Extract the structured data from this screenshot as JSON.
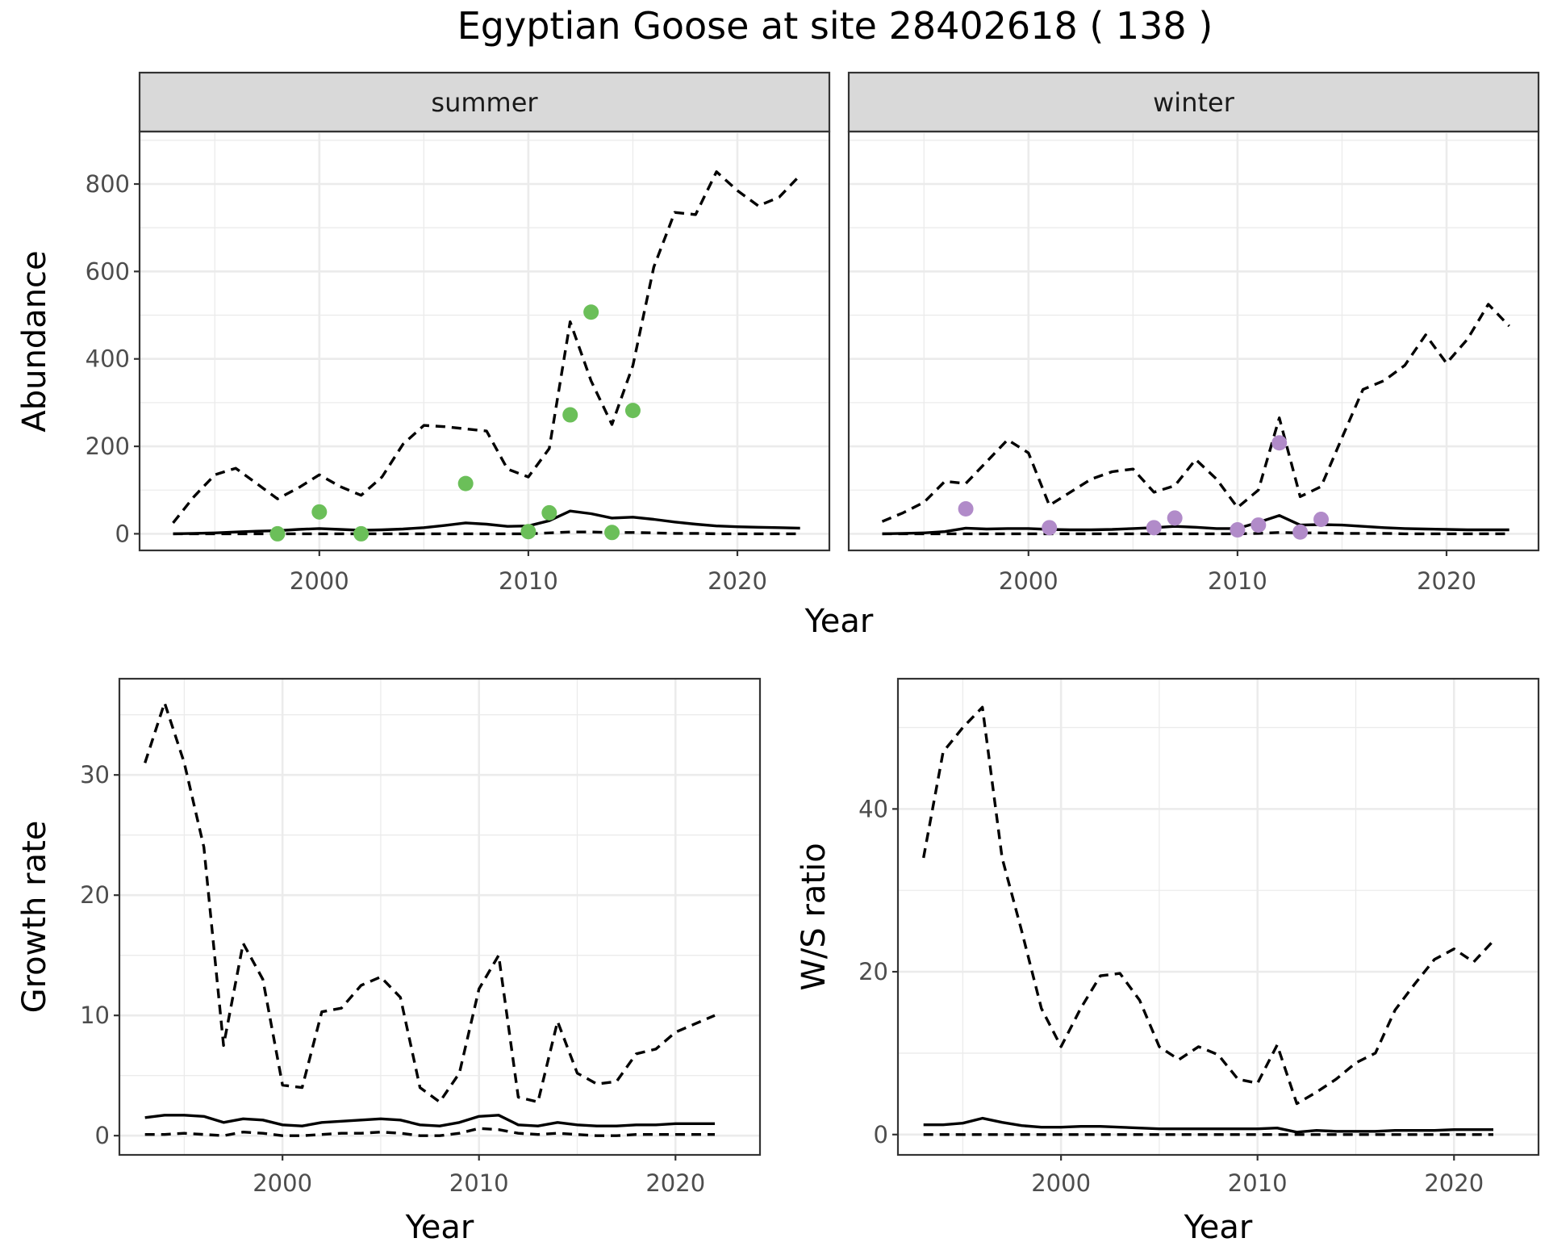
{
  "title": "Egyptian Goose at site 28402618 ( 138 )",
  "colors": {
    "summer_points": "#6BBF59",
    "winter_points": "#B18BC9",
    "lines": "#000000"
  },
  "chart_data": [
    {
      "id": "abundance",
      "type": "line",
      "facet_labels": [
        "summer",
        "winter"
      ],
      "xlabel": "Year",
      "ylabel": "Abundance",
      "xlim": [
        1991.4,
        2024.4
      ],
      "ylim": [
        -38,
        920
      ],
      "x_ticks": [
        2000,
        2010,
        2020
      ],
      "y_ticks": [
        0,
        200,
        400,
        600,
        800
      ],
      "grid": true,
      "facets": [
        {
          "strip": "summer",
          "points": {
            "x": [
              1998,
              2000,
              2002,
              2007,
              2010,
              2011,
              2012,
              2013,
              2014,
              2015
            ],
            "y": [
              0,
              50,
              0,
              115,
              5,
              48,
              272,
              507,
              3,
              282
            ]
          },
          "series": [
            {
              "style": "solid",
              "x": [
                1993,
                1994,
                1995,
                1996,
                1997,
                1998,
                1999,
                2000,
                2001,
                2002,
                2003,
                2004,
                2005,
                2006,
                2007,
                2008,
                2009,
                2010,
                2011,
                2012,
                2013,
                2014,
                2015,
                2016,
                2017,
                2018,
                2019,
                2020,
                2021,
                2022,
                2023
              ],
              "y": [
                0,
                1,
                2,
                4,
                6,
                7,
                10,
                12,
                10,
                8,
                9,
                11,
                14,
                19,
                25,
                22,
                17,
                18,
                30,
                52,
                46,
                36,
                38,
                33,
                27,
                22,
                18,
                16,
                15,
                14,
                13
              ]
            },
            {
              "style": "dashed",
              "x": [
                1993,
                1994,
                1995,
                1996,
                1997,
                1998,
                1999,
                2000,
                2001,
                2002,
                2003,
                2004,
                2005,
                2006,
                2007,
                2008,
                2009,
                2010,
                2011,
                2012,
                2013,
                2014,
                2015,
                2016,
                2017,
                2018,
                2019,
                2020,
                2021,
                2022,
                2023
              ],
              "y": [
                25,
                85,
                135,
                150,
                115,
                80,
                105,
                135,
                108,
                88,
                130,
                205,
                248,
                245,
                240,
                235,
                148,
                130,
                195,
                485,
                350,
                250,
                385,
                610,
                735,
                730,
                828,
                785,
                750,
                770,
                820
              ]
            },
            {
              "style": "dashed",
              "x": [
                1993,
                1994,
                1995,
                1996,
                1997,
                1998,
                1999,
                2000,
                2001,
                2002,
                2003,
                2004,
                2005,
                2006,
                2007,
                2008,
                2009,
                2010,
                2011,
                2012,
                2013,
                2014,
                2015,
                2016,
                2017,
                2018,
                2019,
                2020,
                2021,
                2022,
                2023
              ],
              "y": [
                0,
                0,
                0,
                0,
                0,
                0,
                0,
                0,
                0,
                0,
                0,
                0,
                0,
                0,
                0,
                0,
                0,
                0,
                2,
                4,
                4,
                3,
                3,
                2,
                1,
                1,
                0,
                0,
                0,
                0,
                0
              ]
            }
          ]
        },
        {
          "strip": "winter",
          "points": {
            "x": [
              1997,
              2001,
              2006,
              2007,
              2010,
              2011,
              2012,
              2013,
              2014
            ],
            "y": [
              57,
              14,
              14,
              36,
              9,
              20,
              208,
              4,
              33
            ]
          },
          "series": [
            {
              "style": "solid",
              "x": [
                1993,
                1994,
                1995,
                1996,
                1997,
                1998,
                1999,
                2000,
                2001,
                2002,
                2003,
                2004,
                2005,
                2006,
                2007,
                2008,
                2009,
                2010,
                2011,
                2012,
                2013,
                2014,
                2015,
                2016,
                2017,
                2018,
                2019,
                2020,
                2021,
                2022,
                2023
              ],
              "y": [
                0,
                1,
                2,
                5,
                13,
                11,
                12,
                12,
                10,
                9,
                9,
                10,
                12,
                14,
                17,
                15,
                12,
                12,
                26,
                42,
                20,
                21,
                20,
                17,
                14,
                12,
                11,
                10,
                9,
                9,
                9
              ]
            },
            {
              "style": "dashed",
              "x": [
                1993,
                1994,
                1995,
                1996,
                1997,
                1998,
                1999,
                2000,
                2001,
                2002,
                2003,
                2004,
                2005,
                2006,
                2007,
                2008,
                2009,
                2010,
                2011,
                2012,
                2013,
                2014,
                2015,
                2016,
                2017,
                2018,
                2019,
                2020,
                2021,
                2022,
                2023
              ],
              "y": [
                28,
                48,
                72,
                120,
                115,
                165,
                215,
                185,
                65,
                95,
                125,
                142,
                148,
                95,
                110,
                170,
                125,
                60,
                100,
                265,
                85,
                108,
                220,
                330,
                350,
                385,
                455,
                390,
                445,
                525,
                475
              ]
            },
            {
              "style": "dashed",
              "x": [
                1993,
                1994,
                1995,
                1996,
                1997,
                1998,
                1999,
                2000,
                2001,
                2002,
                2003,
                2004,
                2005,
                2006,
                2007,
                2008,
                2009,
                2010,
                2011,
                2012,
                2013,
                2014,
                2015,
                2016,
                2017,
                2018,
                2019,
                2020,
                2021,
                2022,
                2023
              ],
              "y": [
                0,
                0,
                0,
                0,
                0,
                0,
                0,
                0,
                0,
                0,
                0,
                0,
                0,
                0,
                0,
                0,
                0,
                0,
                1,
                3,
                2,
                2,
                1,
                1,
                1,
                0,
                0,
                0,
                0,
                0,
                0
              ]
            }
          ]
        }
      ]
    },
    {
      "id": "growth",
      "type": "line",
      "xlabel": "Year",
      "ylabel": "Growth rate",
      "xlim": [
        1991.7,
        2024.3
      ],
      "ylim": [
        -1.6,
        38.0
      ],
      "x_ticks": [
        2000,
        2010,
        2020
      ],
      "y_ticks": [
        0,
        10,
        20,
        30
      ],
      "grid": true,
      "series": [
        {
          "style": "solid",
          "x": [
            1993,
            1994,
            1995,
            1996,
            1997,
            1998,
            1999,
            2000,
            2001,
            2002,
            2003,
            2004,
            2005,
            2006,
            2007,
            2008,
            2009,
            2010,
            2011,
            2012,
            2013,
            2014,
            2015,
            2016,
            2017,
            2018,
            2019,
            2020,
            2021,
            2022
          ],
          "y": [
            1.5,
            1.7,
            1.7,
            1.6,
            1.1,
            1.4,
            1.3,
            0.9,
            0.8,
            1.1,
            1.2,
            1.3,
            1.4,
            1.3,
            0.9,
            0.8,
            1.1,
            1.6,
            1.7,
            0.9,
            0.8,
            1.1,
            0.9,
            0.8,
            0.8,
            0.9,
            0.9,
            1.0,
            1.0,
            1.0
          ]
        },
        {
          "style": "dashed",
          "x": [
            1993,
            1994,
            1995,
            1996,
            1997,
            1998,
            1999,
            2000,
            2001,
            2002,
            2003,
            2004,
            2005,
            2006,
            2007,
            2008,
            2009,
            2010,
            2011,
            2012,
            2013,
            2014,
            2015,
            2016,
            2017,
            2018,
            2019,
            2020,
            2021,
            2022
          ],
          "y": [
            31,
            36,
            31,
            24,
            7.5,
            16,
            13,
            4.2,
            4,
            10.3,
            10.6,
            12.5,
            13.2,
            11.5,
            4,
            2.8,
            5.2,
            12.2,
            15,
            3.2,
            2.8,
            9.5,
            5.2,
            4.3,
            4.5,
            6.8,
            7.2,
            8.6,
            9.3,
            10
          ]
        },
        {
          "style": "dashed",
          "x": [
            1993,
            1994,
            1995,
            1996,
            1997,
            1998,
            1999,
            2000,
            2001,
            2002,
            2003,
            2004,
            2005,
            2006,
            2007,
            2008,
            2009,
            2010,
            2011,
            2012,
            2013,
            2014,
            2015,
            2016,
            2017,
            2018,
            2019,
            2020,
            2021,
            2022
          ],
          "y": [
            0.1,
            0.1,
            0.2,
            0.1,
            0,
            0.3,
            0.2,
            0,
            0,
            0.1,
            0.2,
            0.2,
            0.3,
            0.2,
            0,
            0,
            0.2,
            0.6,
            0.5,
            0.2,
            0.1,
            0.2,
            0.1,
            0,
            0,
            0.1,
            0.1,
            0.1,
            0.1,
            0.1
          ]
        }
      ]
    },
    {
      "id": "ws_ratio",
      "type": "line",
      "xlabel": "Year",
      "ylabel": "W/S ratio",
      "xlim": [
        1991.7,
        2024.3
      ],
      "ylim": [
        -2.5,
        56.0
      ],
      "x_ticks": [
        2000,
        2010,
        2020
      ],
      "y_ticks": [
        0,
        20,
        40
      ],
      "grid": true,
      "series": [
        {
          "style": "solid",
          "x": [
            1993,
            1994,
            1995,
            1996,
            1997,
            1998,
            1999,
            2000,
            2001,
            2002,
            2003,
            2004,
            2005,
            2006,
            2007,
            2008,
            2009,
            2010,
            2011,
            2012,
            2013,
            2014,
            2015,
            2016,
            2017,
            2018,
            2019,
            2020,
            2021,
            2022
          ],
          "y": [
            1.2,
            1.2,
            1.4,
            2,
            1.5,
            1.1,
            0.9,
            0.9,
            1,
            1,
            0.9,
            0.8,
            0.7,
            0.7,
            0.7,
            0.7,
            0.7,
            0.7,
            0.8,
            0.3,
            0.5,
            0.4,
            0.4,
            0.4,
            0.5,
            0.5,
            0.5,
            0.6,
            0.6,
            0.6
          ]
        },
        {
          "style": "dashed",
          "x": [
            1993,
            1994,
            1995,
            1996,
            1997,
            1998,
            1999,
            2000,
            2001,
            2002,
            2003,
            2004,
            2005,
            2006,
            2007,
            2008,
            2009,
            2010,
            2011,
            2012,
            2013,
            2014,
            2015,
            2016,
            2017,
            2018,
            2019,
            2020,
            2021,
            2022
          ],
          "y": [
            34,
            47,
            50,
            52.5,
            34,
            25,
            15.5,
            10.8,
            15.5,
            19.5,
            19.8,
            16.5,
            10.8,
            9.2,
            10.8,
            9.8,
            6.8,
            6.3,
            11,
            3.8,
            5.2,
            6.8,
            8.8,
            10,
            15.3,
            18.5,
            21.5,
            22.8,
            21.2,
            23.8
          ]
        },
        {
          "style": "dashed",
          "x": [
            1993,
            1994,
            1995,
            1996,
            1997,
            1998,
            1999,
            2000,
            2001,
            2002,
            2003,
            2004,
            2005,
            2006,
            2007,
            2008,
            2009,
            2010,
            2011,
            2012,
            2013,
            2014,
            2015,
            2016,
            2017,
            2018,
            2019,
            2020,
            2021,
            2022
          ],
          "y": [
            0,
            0,
            0,
            0,
            0,
            0,
            0,
            0,
            0,
            0,
            0,
            0,
            0,
            0,
            0,
            0,
            0,
            0,
            0,
            0,
            0,
            0,
            0,
            0,
            0,
            0,
            0,
            0,
            0,
            0
          ]
        }
      ]
    }
  ]
}
